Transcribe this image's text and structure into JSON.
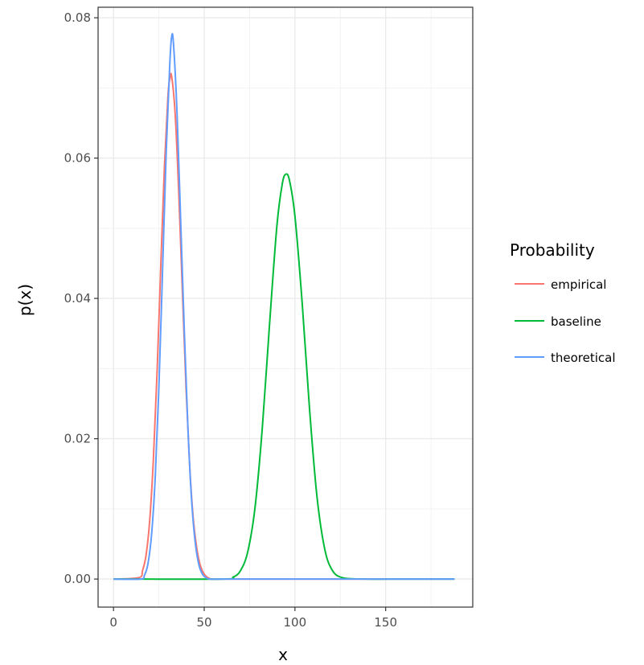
{
  "chart_data": {
    "type": "line",
    "xlabel": "x",
    "ylabel": "p(x)",
    "xlim": [
      -8.5,
      198
    ],
    "ylim": [
      -0.004,
      0.0815
    ],
    "x_ticks": [
      0,
      50,
      100,
      150
    ],
    "x_tick_labels": [
      "0",
      "50",
      "100",
      "150"
    ],
    "y_ticks": [
      0,
      0.02,
      0.04,
      0.06,
      0.08
    ],
    "y_tick_labels": [
      "0.00",
      "0.02",
      "0.04",
      "0.06",
      "0.08"
    ],
    "grid": true,
    "legend": {
      "title": "Probability",
      "position": "right"
    },
    "series": [
      {
        "name": "empirical",
        "color": "#F8766D",
        "x": [
          0,
          14,
          16,
          18,
          20,
          22,
          24,
          26,
          28,
          30,
          31,
          32,
          34,
          36,
          38,
          40,
          42,
          44,
          46,
          48,
          50,
          52,
          54,
          60,
          80,
          100,
          120,
          140,
          160,
          180,
          188
        ],
        "y": [
          0,
          0.0002,
          0.0012,
          0.0035,
          0.0085,
          0.0172,
          0.0294,
          0.0442,
          0.0583,
          0.0688,
          0.0712,
          0.0717,
          0.0662,
          0.0548,
          0.0408,
          0.0271,
          0.016,
          0.0085,
          0.0042,
          0.0018,
          0.0007,
          0.0002,
          0,
          0,
          0,
          0,
          0,
          0,
          0,
          0,
          0
        ]
      },
      {
        "name": "baseline",
        "color": "#00BA38",
        "x": [
          0,
          60,
          66,
          70,
          74,
          78,
          82,
          86,
          90,
          93,
          95,
          97,
          100,
          104,
          108,
          112,
          116,
          120,
          126,
          140,
          160,
          188
        ],
        "y": [
          0,
          0,
          0.0003,
          0.0012,
          0.0039,
          0.0102,
          0.0215,
          0.0363,
          0.0502,
          0.0563,
          0.0577,
          0.0568,
          0.0517,
          0.0393,
          0.0244,
          0.0121,
          0.0048,
          0.0015,
          0.0002,
          0,
          0,
          0
        ]
      },
      {
        "name": "theoretical",
        "color": "#619CFF",
        "x": [
          0,
          15,
          17,
          19,
          21,
          23,
          25,
          27,
          29,
          31,
          32,
          33,
          35,
          37,
          39,
          41,
          43,
          45,
          47,
          49,
          51,
          53,
          60,
          80,
          100,
          120,
          140,
          160,
          180,
          188
        ],
        "y": [
          0,
          0,
          0.0005,
          0.0022,
          0.0064,
          0.0145,
          0.0273,
          0.0437,
          0.0605,
          0.0733,
          0.0772,
          0.0765,
          0.0665,
          0.0512,
          0.0355,
          0.0216,
          0.0114,
          0.0053,
          0.0021,
          0.0007,
          0.0002,
          0,
          0,
          0,
          0,
          0,
          0,
          0,
          0,
          0
        ]
      }
    ]
  }
}
